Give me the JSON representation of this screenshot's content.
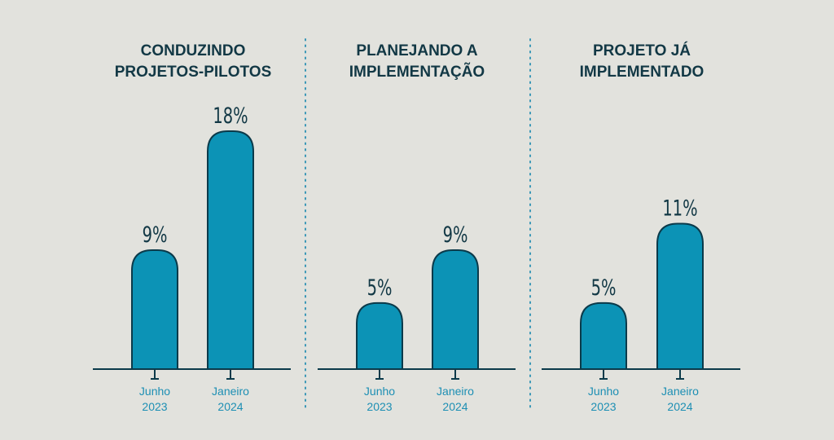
{
  "colors": {
    "background": "#e2e2dd",
    "bar_fill": "#0c93b6",
    "bar_stroke": "#0b3a4a",
    "title": "#123845",
    "value_label": "#123845",
    "tick_label": "#1d8fb4",
    "axis": "#0b3a4a",
    "divider": "#3a97b6"
  },
  "chart_data": [
    {
      "type": "bar",
      "title_lines": [
        "CONDUZINDO",
        "PROJETOS-PILOTOS"
      ],
      "categories": [
        [
          "Junho",
          "2023"
        ],
        [
          "Janeiro",
          "2024"
        ]
      ],
      "values": [
        9,
        18
      ],
      "value_labels": [
        "9%",
        "18%"
      ],
      "ylim": [
        0,
        18
      ]
    },
    {
      "type": "bar",
      "title_lines": [
        "PLANEJANDO A",
        "IMPLEMENTAÇÃO"
      ],
      "categories": [
        [
          "Junho",
          "2023"
        ],
        [
          "Janeiro",
          "2024"
        ]
      ],
      "values": [
        5,
        9
      ],
      "value_labels": [
        "5%",
        "9%"
      ],
      "ylim": [
        0,
        18
      ]
    },
    {
      "type": "bar",
      "title_lines": [
        "PROJETO JÁ",
        "IMPLEMENTADO"
      ],
      "categories": [
        [
          "Junho",
          "2023"
        ],
        [
          "Janeiro",
          "2024"
        ]
      ],
      "values": [
        5,
        11
      ],
      "value_labels": [
        "5%",
        "11%"
      ],
      "ylim": [
        0,
        18
      ]
    }
  ]
}
